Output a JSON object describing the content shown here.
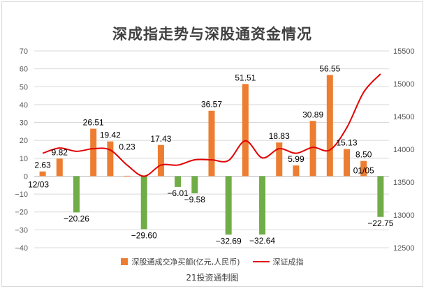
{
  "chart_data": {
    "type": "bar",
    "title": "深成指走势与深股通资金情况",
    "source_note": "21投资通制图",
    "left_axis": {
      "min": -40,
      "max": 70,
      "step": 10,
      "ticks": [
        "70",
        "60",
        "50",
        "40",
        "30",
        "20",
        "10",
        "0",
        "−10",
        "−20",
        "−30",
        "−40"
      ]
    },
    "right_axis": {
      "min": 12500,
      "max": 15500,
      "step": 500,
      "ticks": [
        "15500",
        "15000",
        "14500",
        "14000",
        "13500",
        "13000",
        "12500"
      ]
    },
    "x_labels": [
      {
        "index": 0,
        "text": "12/03"
      },
      {
        "index": 19,
        "text": "01/05"
      }
    ],
    "series": [
      {
        "name": "深股通成交净买额(亿元,人民币)",
        "kind": "bar",
        "color": "#ed7d31",
        "negative_color": "#70ad47",
        "values": [
          2.63,
          9.82,
          -20.26,
          26.51,
          19.42,
          0.23,
          -29.6,
          17.43,
          -6.01,
          -9.58,
          36.57,
          -32.69,
          51.51,
          -32.64,
          18.83,
          5.99,
          30.89,
          56.55,
          15.13,
          8.5,
          -22.75
        ],
        "labels": [
          "2.63",
          "9.82",
          "−20.26",
          "26.51",
          "19.42",
          "0.23",
          "−29.60",
          "17.43",
          "−6.01",
          "−9.58",
          "36.57",
          "−32.69",
          "51.51",
          "−32.64",
          "18.83",
          "5.99",
          "30.89",
          "56.55",
          "15.13",
          "8.50",
          "−22.75"
        ]
      },
      {
        "name": "深证成指",
        "kind": "line",
        "color": "#e00000",
        "values": [
          13940,
          14020,
          13970,
          14010,
          13990,
          13760,
          13590,
          13760,
          13760,
          13840,
          13840,
          13830,
          14130,
          13870,
          14010,
          13940,
          14030,
          13990,
          14330,
          14870,
          15150
        ]
      }
    ],
    "grid": true
  }
}
